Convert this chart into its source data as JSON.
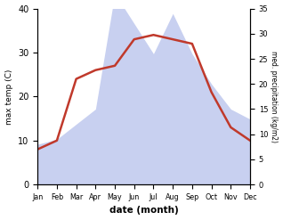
{
  "months": [
    "Jan",
    "Feb",
    "Mar",
    "Apr",
    "May",
    "Jun",
    "Jul",
    "Aug",
    "Sep",
    "Oct",
    "Nov",
    "Dec"
  ],
  "temp": [
    8,
    10,
    24,
    26,
    27,
    33,
    34,
    33,
    32,
    21,
    13,
    10
  ],
  "precip": [
    8,
    9,
    12,
    15,
    38,
    32,
    26,
    34,
    26,
    20,
    15,
    13
  ],
  "temp_color": "#c0392b",
  "precip_fill_color": "#c8d0f0",
  "xlabel": "date (month)",
  "ylabel_left": "max temp (C)",
  "ylabel_right": "med. precipitation (kg/m2)",
  "ylim_left": [
    0,
    40
  ],
  "ylim_right": [
    0,
    35
  ],
  "yticks_left": [
    0,
    10,
    20,
    30,
    40
  ],
  "yticks_right": [
    0,
    5,
    10,
    15,
    20,
    25,
    30,
    35
  ],
  "temp_linewidth": 1.8,
  "background_color": "#ffffff"
}
